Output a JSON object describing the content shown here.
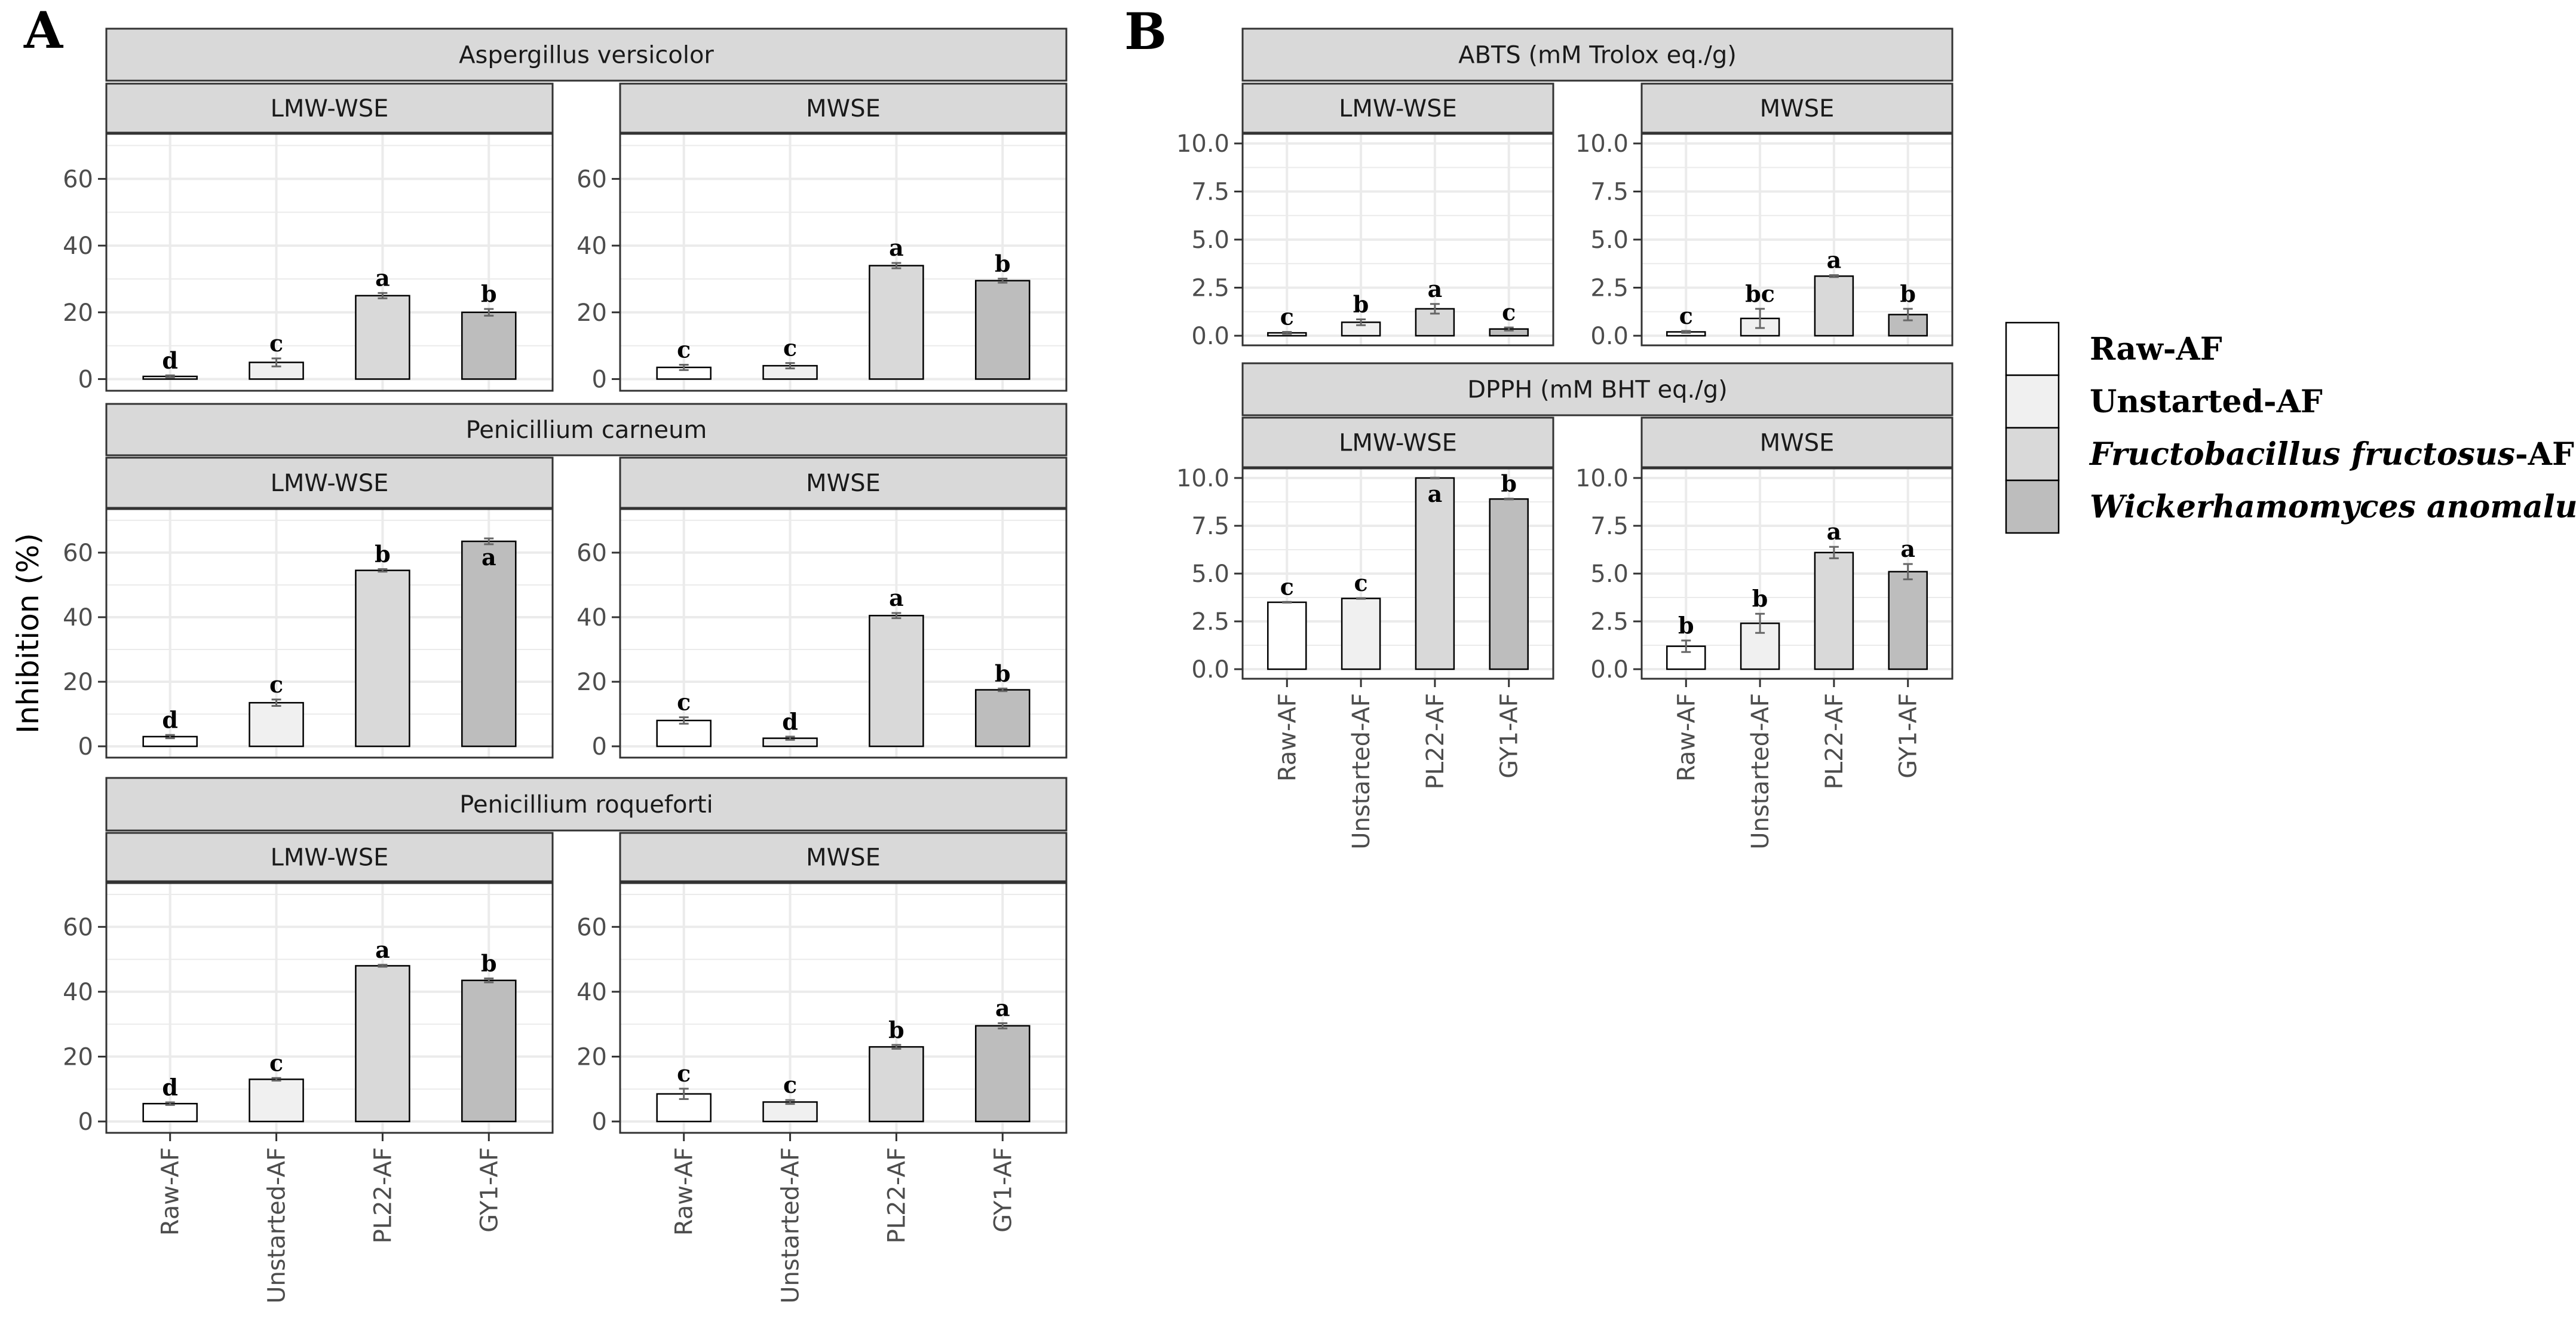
{
  "panel_labels": [
    "A",
    "B"
  ],
  "colors": {
    "Raw-AF": "#ffffff",
    "Unstarted-AF": "#f0f0f0",
    "PL22-AF": "#d9d9d9",
    "GY1-AF": "#bdbdbd",
    "strip_fill": "#d9d9d9",
    "grid": "#ebebeb",
    "border": "#333333"
  },
  "legend": {
    "items": [
      {
        "label": "Raw-AF",
        "italic": "",
        "suffix": "",
        "key": "Raw-AF"
      },
      {
        "label": "Unstarted-AF",
        "italic": "",
        "suffix": "",
        "key": "Unstarted-AF"
      },
      {
        "label": "",
        "italic": "Fructobacillus fructosus",
        "suffix": "-AF",
        "key": "PL22-AF"
      },
      {
        "label": "",
        "italic": "Wickerhamomyces anomalus",
        "suffix": "-AF",
        "key": "GY1-AF"
      }
    ]
  },
  "chart_data": [
    {
      "type": "bar",
      "panel": "A",
      "ylabel": "Inhibition (%)",
      "categories": [
        "Raw-AF",
        "Unstarted-AF",
        "PL22-AF",
        "GY1-AF"
      ],
      "yticks": [
        "0",
        "20",
        "40",
        "60"
      ],
      "ylim": [
        -3.5,
        73.5
      ],
      "facets": [
        {
          "row": "Aspergillus versicolor",
          "col": "LMW-WSE",
          "values": [
            0.8,
            5,
            25,
            20
          ],
          "errors": [
            0.3,
            1.2,
            0.8,
            1.0
          ],
          "letters": [
            "d",
            "c",
            "a",
            "b"
          ]
        },
        {
          "row": "Aspergillus versicolor",
          "col": "MWSE",
          "values": [
            3.5,
            4,
            34,
            29.5
          ],
          "errors": [
            0.8,
            0.8,
            0.8,
            0.6
          ],
          "letters": [
            "c",
            "c",
            "a",
            "b"
          ]
        },
        {
          "row": "Penicillium carneum",
          "col": "LMW-WSE",
          "values": [
            3,
            13.5,
            54.5,
            63.5
          ],
          "errors": [
            0.5,
            1.0,
            0.4,
            0.9
          ],
          "letters": [
            "d",
            "c",
            "b",
            "a"
          ]
        },
        {
          "row": "Penicillium carneum",
          "col": "MWSE",
          "values": [
            8,
            2.5,
            40.5,
            17.5
          ],
          "errors": [
            1.0,
            0.5,
            0.8,
            0.4
          ],
          "letters": [
            "c",
            "d",
            "a",
            "b"
          ]
        },
        {
          "row": "Penicillium roqueforti",
          "col": "LMW-WSE",
          "values": [
            5.5,
            13,
            48,
            43.5
          ],
          "errors": [
            0.4,
            0.4,
            0.3,
            0.6
          ],
          "letters": [
            "d",
            "c",
            "a",
            "b"
          ]
        },
        {
          "row": "Penicillium roqueforti",
          "col": "MWSE",
          "values": [
            8.5,
            6,
            23,
            29.5
          ],
          "errors": [
            1.6,
            0.6,
            0.6,
            0.8
          ],
          "letters": [
            "c",
            "c",
            "b",
            "a"
          ]
        }
      ]
    },
    {
      "type": "bar",
      "panel": "B",
      "categories": [
        "Raw-AF",
        "Unstarted-AF",
        "PL22-AF",
        "GY1-AF"
      ],
      "yticks": [
        "0.0",
        "2.5",
        "5.0",
        "7.5",
        "10.0"
      ],
      "ylim": [
        -0.5,
        10.5
      ],
      "facets": [
        {
          "row": "ABTS (mM Trolox eq./g)",
          "col": "LMW-WSE",
          "values": [
            0.15,
            0.7,
            1.4,
            0.35
          ],
          "errors": [
            0.05,
            0.15,
            0.25,
            0.08
          ],
          "letters": [
            "c",
            "b",
            "a",
            "c"
          ]
        },
        {
          "row": "ABTS (mM Trolox eq./g)",
          "col": "MWSE",
          "values": [
            0.2,
            0.9,
            3.1,
            1.1
          ],
          "errors": [
            0.05,
            0.5,
            0.05,
            0.3
          ],
          "letters": [
            "c",
            "bc",
            "a",
            "b"
          ]
        },
        {
          "row": "DPPH (mM BHT eq./g)",
          "col": "LMW-WSE",
          "values": [
            3.5,
            3.7,
            10.0,
            8.9
          ],
          "errors": [
            0.02,
            0.02,
            0.02,
            0.02
          ],
          "letters": [
            "c",
            "c",
            "a",
            "b"
          ]
        },
        {
          "row": "DPPH (mM BHT eq./g)",
          "col": "MWSE",
          "values": [
            1.2,
            2.4,
            6.1,
            5.1
          ],
          "errors": [
            0.3,
            0.5,
            0.3,
            0.4
          ],
          "letters": [
            "b",
            "b",
            "a",
            "a"
          ]
        }
      ]
    }
  ]
}
